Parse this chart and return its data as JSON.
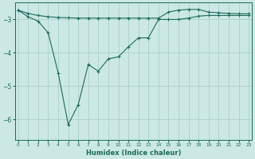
{
  "xlabel": "Humidex (Indice chaleur)",
  "background_color": "#cce8e4",
  "grid_color": "#aacfca",
  "line_color": "#1a6b5a",
  "x_ticks": [
    0,
    1,
    2,
    3,
    4,
    5,
    6,
    7,
    8,
    9,
    10,
    11,
    12,
    13,
    14,
    15,
    16,
    17,
    18,
    19,
    20,
    21,
    22,
    23
  ],
  "y_ticks": [
    -3,
    -4,
    -5,
    -6
  ],
  "ylim": [
    -6.6,
    -2.5
  ],
  "xlim": [
    -0.3,
    23.3
  ],
  "series1_x": [
    0,
    1,
    2,
    3,
    4,
    5,
    6,
    7,
    8,
    9,
    10,
    11,
    12,
    13,
    14,
    15,
    16,
    17,
    18,
    19,
    20,
    21,
    22,
    23
  ],
  "series1_y": [
    -2.72,
    -2.82,
    -2.88,
    -2.92,
    -2.94,
    -2.95,
    -2.96,
    -2.96,
    -2.96,
    -2.96,
    -2.96,
    -2.96,
    -2.96,
    -2.96,
    -2.96,
    -2.78,
    -2.72,
    -2.7,
    -2.7,
    -2.78,
    -2.8,
    -2.82,
    -2.83,
    -2.83
  ],
  "series2_x": [
    0,
    1,
    2,
    3,
    4,
    5,
    6,
    7,
    8,
    9,
    10,
    11,
    12,
    13,
    14,
    15,
    16,
    17,
    18,
    19,
    20,
    21,
    22,
    23
  ],
  "series2_y": [
    -2.72,
    -2.92,
    -3.05,
    -3.4,
    -4.6,
    -6.15,
    -5.55,
    -4.35,
    -4.55,
    -4.18,
    -4.12,
    -3.82,
    -3.55,
    -3.55,
    -3.0,
    -3.0,
    -3.0,
    -2.96,
    -2.9,
    -2.88,
    -2.88,
    -2.88,
    -2.88,
    -2.88
  ]
}
